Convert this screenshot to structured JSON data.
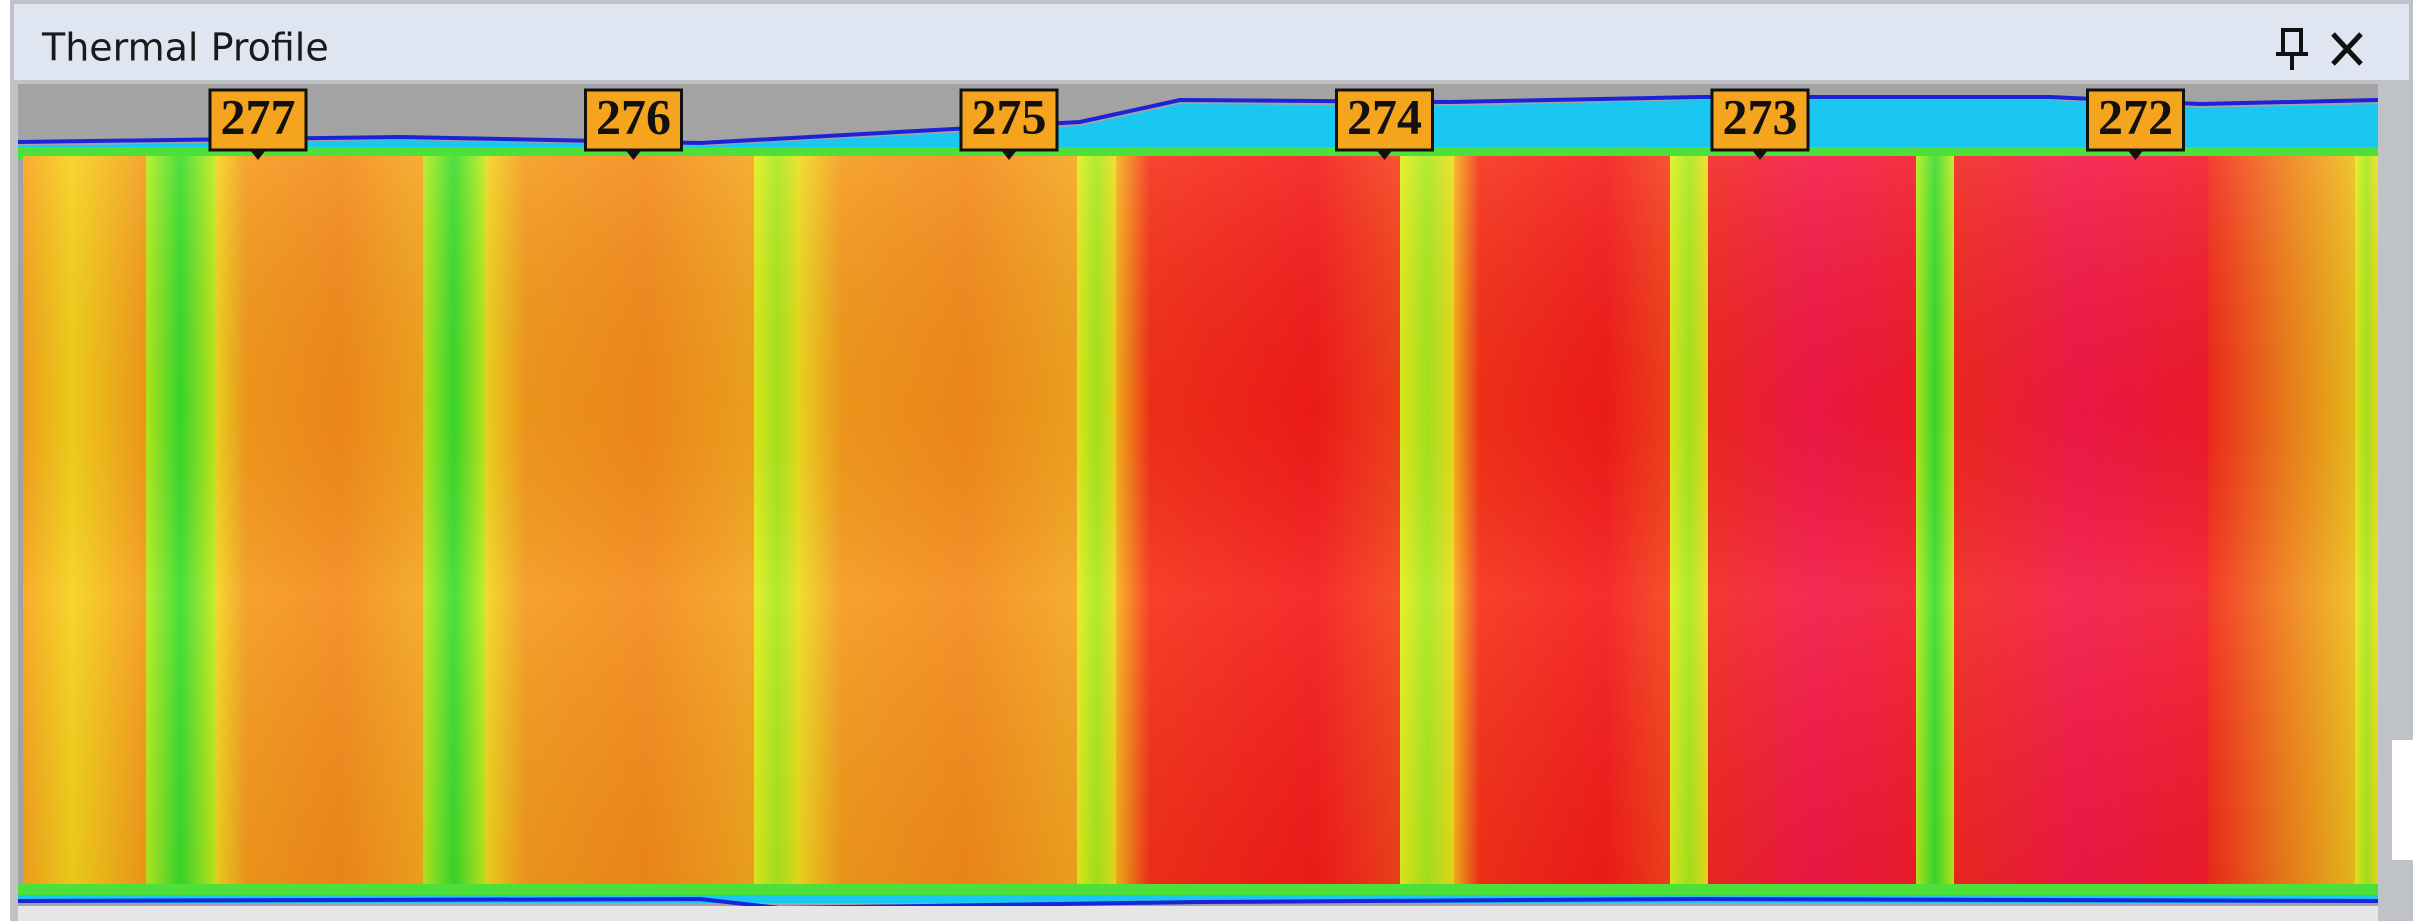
{
  "panel": {
    "title": "Thermal Profile",
    "markers": [
      "277",
      "276",
      "275",
      "274",
      "273",
      "272"
    ]
  }
}
